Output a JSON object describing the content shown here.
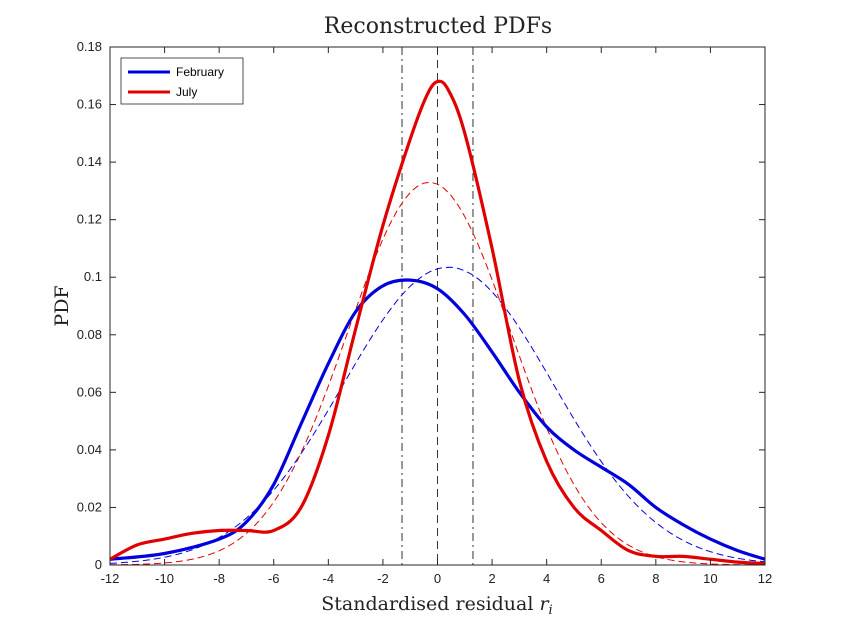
{
  "chart_data": {
    "type": "line",
    "title": "Reconstructed PDFs",
    "xlabel": "Standardised residual",
    "xlabel_var": "r",
    "xlabel_sub": "i",
    "ylabel": "PDF",
    "xlim": [
      -12,
      12
    ],
    "ylim": [
      0,
      0.18
    ],
    "xticks": [
      -12,
      -10,
      -8,
      -6,
      -4,
      -2,
      0,
      2,
      4,
      6,
      8,
      10,
      12
    ],
    "yticks": [
      0,
      0.02,
      0.04,
      0.06,
      0.08,
      0.1,
      0.12,
      0.14,
      0.16,
      0.18
    ],
    "xtick_labels": [
      "-12",
      "-10",
      "-8",
      "-6",
      "-4",
      "-2",
      "0",
      "2",
      "4",
      "6",
      "8",
      "10",
      "12"
    ],
    "ytick_labels": [
      "0",
      "0.02",
      "0.04",
      "0.06",
      "0.08",
      "0.1",
      "0.12",
      "0.14",
      "0.16",
      "0.18"
    ],
    "legend": {
      "location": "top-left",
      "entries": [
        "February",
        "July"
      ]
    },
    "vertical_lines": [
      {
        "x": -1.3,
        "style": "dash-dot",
        "color": "#333333"
      },
      {
        "x": 0.0,
        "style": "dashed",
        "color": "#333333"
      },
      {
        "x": 1.3,
        "style": "dash-dot",
        "color": "#333333"
      }
    ],
    "series": [
      {
        "name": "February",
        "style": "solid",
        "color": "#0000dd",
        "in_legend": true,
        "points": [
          [
            -12,
            0.002
          ],
          [
            -10,
            0.004
          ],
          [
            -8,
            0.009
          ],
          [
            -7,
            0.015
          ],
          [
            -6,
            0.028
          ],
          [
            -5,
            0.049
          ],
          [
            -4,
            0.07
          ],
          [
            -3,
            0.088
          ],
          [
            -2,
            0.097
          ],
          [
            -1,
            0.099
          ],
          [
            0,
            0.096
          ],
          [
            1,
            0.087
          ],
          [
            2,
            0.074
          ],
          [
            3,
            0.06
          ],
          [
            4,
            0.048
          ],
          [
            5,
            0.04
          ],
          [
            6,
            0.034
          ],
          [
            7,
            0.028
          ],
          [
            8,
            0.02
          ],
          [
            9,
            0.014
          ],
          [
            10,
            0.009
          ],
          [
            11,
            0.005
          ],
          [
            12,
            0.002
          ]
        ]
      },
      {
        "name": "July",
        "style": "solid",
        "color": "#e00000",
        "in_legend": true,
        "points": [
          [
            -12,
            0.002
          ],
          [
            -11,
            0.007
          ],
          [
            -10,
            0.009
          ],
          [
            -9,
            0.011
          ],
          [
            -8,
            0.012
          ],
          [
            -7,
            0.012
          ],
          [
            -6,
            0.012
          ],
          [
            -5,
            0.02
          ],
          [
            -4,
            0.045
          ],
          [
            -3,
            0.082
          ],
          [
            -2,
            0.118
          ],
          [
            -1,
            0.148
          ],
          [
            -0.4,
            0.163
          ],
          [
            0,
            0.168
          ],
          [
            0.4,
            0.165
          ],
          [
            1,
            0.15
          ],
          [
            2,
            0.11
          ],
          [
            3,
            0.064
          ],
          [
            4,
            0.036
          ],
          [
            5,
            0.02
          ],
          [
            6,
            0.012
          ],
          [
            7,
            0.005
          ],
          [
            8,
            0.003
          ],
          [
            9,
            0.003
          ],
          [
            10,
            0.002
          ],
          [
            11,
            0.001
          ],
          [
            12,
            0.0005
          ]
        ]
      },
      {
        "name": "February (normal fit)",
        "style": "dashed",
        "color": "#0000dd",
        "in_legend": false,
        "gaussian": {
          "mu": 0.4,
          "sigma": 3.85,
          "peak": 0.1035
        }
      },
      {
        "name": "July (normal fit)",
        "style": "dashed",
        "color": "#e00000",
        "in_legend": false,
        "gaussian": {
          "mu": -0.3,
          "sigma": 3.0,
          "peak": 0.133
        }
      }
    ]
  }
}
